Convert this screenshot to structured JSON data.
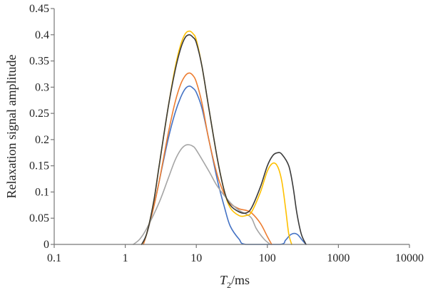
{
  "chart_data": {
    "type": "line",
    "title": "",
    "xlabel_var": "T",
    "xlabel_sub": "2",
    "xlabel_unit": "/ms",
    "ylabel": "Relaxation signal amplitude",
    "x_scale": "log",
    "xlim": [
      0.1,
      10000
    ],
    "ylim": [
      0,
      0.45
    ],
    "x_ticks": [
      0.1,
      1,
      10,
      100,
      1000,
      10000
    ],
    "x_tick_labels": [
      "0.1",
      "1",
      "10",
      "100",
      "1000",
      "10000"
    ],
    "y_ticks": [
      0,
      0.05,
      0.1,
      0.15,
      0.2,
      0.25,
      0.3,
      0.35,
      0.4,
      0.45
    ],
    "y_tick_labels": [
      "0",
      "0.05",
      "0.1",
      "0.15",
      "0.2",
      "0.25",
      "0.3",
      "0.35",
      "0.4",
      "0.45"
    ],
    "grid": false,
    "legend": "none",
    "series": [
      {
        "color": "#4472C4",
        "points": [
          [
            1.7,
            0
          ],
          [
            2,
            0.02
          ],
          [
            2.5,
            0.07
          ],
          [
            3,
            0.12
          ],
          [
            4,
            0.2
          ],
          [
            5,
            0.25
          ],
          [
            6,
            0.28
          ],
          [
            7,
            0.297
          ],
          [
            8,
            0.302
          ],
          [
            9,
            0.298
          ],
          [
            10,
            0.29
          ],
          [
            12,
            0.26
          ],
          [
            15,
            0.2
          ],
          [
            20,
            0.12
          ],
          [
            25,
            0.07
          ],
          [
            30,
            0.035
          ],
          [
            40,
            0.01
          ],
          [
            50,
            0
          ],
          [
            150,
            0
          ],
          [
            180,
            0.008
          ],
          [
            210,
            0.018
          ],
          [
            240,
            0.021
          ],
          [
            270,
            0.018
          ],
          [
            310,
            0.008
          ],
          [
            350,
            0
          ]
        ]
      },
      {
        "color": "#ED7D31",
        "points": [
          [
            1.8,
            0
          ],
          [
            2,
            0.02
          ],
          [
            2.5,
            0.07
          ],
          [
            3,
            0.12
          ],
          [
            4,
            0.21
          ],
          [
            5,
            0.27
          ],
          [
            6,
            0.305
          ],
          [
            7,
            0.322
          ],
          [
            8,
            0.327
          ],
          [
            9,
            0.322
          ],
          [
            10,
            0.31
          ],
          [
            12,
            0.27
          ],
          [
            15,
            0.2
          ],
          [
            20,
            0.13
          ],
          [
            25,
            0.095
          ],
          [
            30,
            0.078
          ],
          [
            40,
            0.068
          ],
          [
            50,
            0.065
          ],
          [
            60,
            0.06
          ],
          [
            80,
            0.04
          ],
          [
            100,
            0.015
          ],
          [
            115,
            0
          ]
        ]
      },
      {
        "color": "#A5A5A5",
        "points": [
          [
            1.3,
            0
          ],
          [
            1.6,
            0.01
          ],
          [
            2,
            0.03
          ],
          [
            3,
            0.08
          ],
          [
            4,
            0.125
          ],
          [
            5,
            0.16
          ],
          [
            6,
            0.18
          ],
          [
            7,
            0.189
          ],
          [
            8,
            0.19
          ],
          [
            9,
            0.187
          ],
          [
            10,
            0.18
          ],
          [
            15,
            0.14
          ],
          [
            20,
            0.11
          ],
          [
            30,
            0.08
          ],
          [
            40,
            0.065
          ],
          [
            50,
            0.058
          ],
          [
            60,
            0.05
          ],
          [
            70,
            0.03
          ],
          [
            90,
            0.01
          ],
          [
            110,
            0
          ]
        ]
      },
      {
        "color": "#FFC000",
        "points": [
          [
            1.7,
            0
          ],
          [
            2,
            0.02
          ],
          [
            2.5,
            0.08
          ],
          [
            3,
            0.15
          ],
          [
            4,
            0.26
          ],
          [
            5,
            0.335
          ],
          [
            6,
            0.38
          ],
          [
            7,
            0.402
          ],
          [
            8,
            0.407
          ],
          [
            9,
            0.402
          ],
          [
            10,
            0.39
          ],
          [
            12,
            0.34
          ],
          [
            15,
            0.26
          ],
          [
            20,
            0.16
          ],
          [
            25,
            0.1
          ],
          [
            30,
            0.07
          ],
          [
            40,
            0.055
          ],
          [
            50,
            0.055
          ],
          [
            60,
            0.062
          ],
          [
            80,
            0.1
          ],
          [
            100,
            0.14
          ],
          [
            120,
            0.155
          ],
          [
            140,
            0.148
          ],
          [
            160,
            0.12
          ],
          [
            180,
            0.07
          ],
          [
            200,
            0.02
          ],
          [
            220,
            0
          ]
        ]
      },
      {
        "color": "#3A3A3A",
        "points": [
          [
            1.7,
            0
          ],
          [
            2,
            0.02
          ],
          [
            2.5,
            0.08
          ],
          [
            3,
            0.15
          ],
          [
            4,
            0.26
          ],
          [
            5,
            0.33
          ],
          [
            6,
            0.373
          ],
          [
            7,
            0.395
          ],
          [
            8,
            0.4
          ],
          [
            9,
            0.395
          ],
          [
            10,
            0.385
          ],
          [
            12,
            0.34
          ],
          [
            15,
            0.26
          ],
          [
            20,
            0.16
          ],
          [
            25,
            0.1
          ],
          [
            30,
            0.075
          ],
          [
            40,
            0.062
          ],
          [
            50,
            0.06
          ],
          [
            60,
            0.07
          ],
          [
            80,
            0.11
          ],
          [
            100,
            0.15
          ],
          [
            120,
            0.17
          ],
          [
            140,
            0.175
          ],
          [
            160,
            0.172
          ],
          [
            200,
            0.15
          ],
          [
            230,
            0.11
          ],
          [
            260,
            0.06
          ],
          [
            300,
            0.02
          ],
          [
            350,
            0
          ]
        ]
      }
    ]
  }
}
